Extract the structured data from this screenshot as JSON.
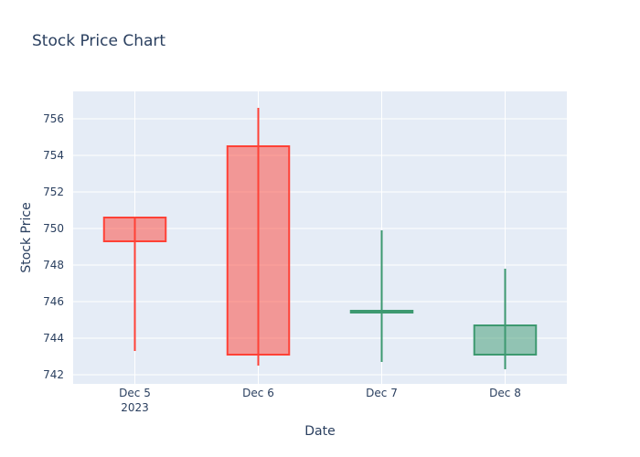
{
  "chart_data": {
    "type": "candlestick",
    "title": "Stock Price Chart",
    "xlabel": "Date",
    "ylabel": "Stock Price",
    "x": [
      "2023-12-05",
      "2023-12-06",
      "2023-12-07",
      "2023-12-08"
    ],
    "x_tick_labels": [
      "Dec 5",
      "Dec 6",
      "Dec 7",
      "Dec 8"
    ],
    "x_year_label": "2023",
    "ohlc": [
      {
        "date": "2023-12-05",
        "open": 750.6,
        "high": 750.6,
        "low": 743.3,
        "close": 749.3
      },
      {
        "date": "2023-12-06",
        "open": 754.5,
        "high": 756.6,
        "low": 742.5,
        "close": 743.1
      },
      {
        "date": "2023-12-07",
        "open": 745.4,
        "high": 749.9,
        "low": 742.7,
        "close": 745.5
      },
      {
        "date": "2023-12-08",
        "open": 743.1,
        "high": 747.8,
        "low": 742.3,
        "close": 744.7
      }
    ],
    "ylim": [
      741.5,
      757.5
    ],
    "y_ticks": [
      742,
      744,
      746,
      748,
      750,
      752,
      754,
      756
    ],
    "grid": true,
    "increasing_color": "#3d9970",
    "decreasing_color": "#ff4136",
    "plot_bgcolor": "#e5ecf6",
    "grid_color": "#ffffff"
  }
}
